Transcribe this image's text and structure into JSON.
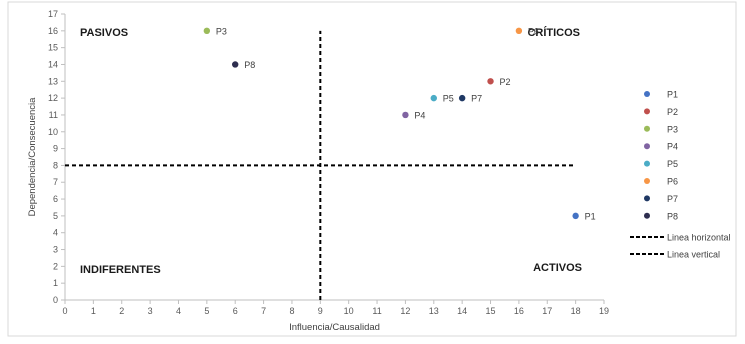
{
  "chart_data": {
    "type": "scatter",
    "xlabel": "Influencia/Causalidad",
    "ylabel": "Dependencia/Consecuencia",
    "xlim": [
      0,
      19
    ],
    "ylim": [
      0,
      17
    ],
    "xticks": [
      0,
      1,
      2,
      3,
      4,
      5,
      6,
      7,
      8,
      9,
      10,
      11,
      12,
      13,
      14,
      15,
      16,
      17,
      18,
      19
    ],
    "yticks": [
      0,
      1,
      2,
      3,
      4,
      5,
      6,
      7,
      8,
      9,
      10,
      11,
      12,
      13,
      14,
      15,
      16,
      17
    ],
    "grid": false,
    "legend_position": "right",
    "points": [
      {
        "name": "P1",
        "x": 18,
        "y": 5,
        "color": "#4472C4"
      },
      {
        "name": "P2",
        "x": 15,
        "y": 13,
        "color": "#C0504D"
      },
      {
        "name": "P3",
        "x": 5,
        "y": 16,
        "color": "#9BBB59"
      },
      {
        "name": "P4",
        "x": 12,
        "y": 11,
        "color": "#8064A2"
      },
      {
        "name": "P5",
        "x": 13,
        "y": 12,
        "color": "#4BACC6"
      },
      {
        "name": "P6",
        "x": 16,
        "y": 16,
        "color": "#F79646"
      },
      {
        "name": "P7",
        "x": 14,
        "y": 12,
        "color": "#1F3864"
      },
      {
        "name": "P8",
        "x": 6,
        "y": 14,
        "color": "#2E2E4F"
      }
    ],
    "reference_lines": [
      {
        "name": "Linea horizontal",
        "orientation": "horizontal",
        "value": 8,
        "x_range": [
          0,
          18
        ],
        "color": "#000000"
      },
      {
        "name": "Linea vertical",
        "orientation": "vertical",
        "value": 9,
        "y_range": [
          0,
          16
        ],
        "color": "#000000"
      }
    ],
    "quadrant_labels": [
      {
        "text": "PASIVOS",
        "position": "top-left"
      },
      {
        "text": "CRÍTICOS",
        "position": "top-right"
      },
      {
        "text": "INDIFERENTES",
        "position": "bottom-left"
      },
      {
        "text": "ACTIVOS",
        "position": "bottom-right"
      }
    ]
  }
}
